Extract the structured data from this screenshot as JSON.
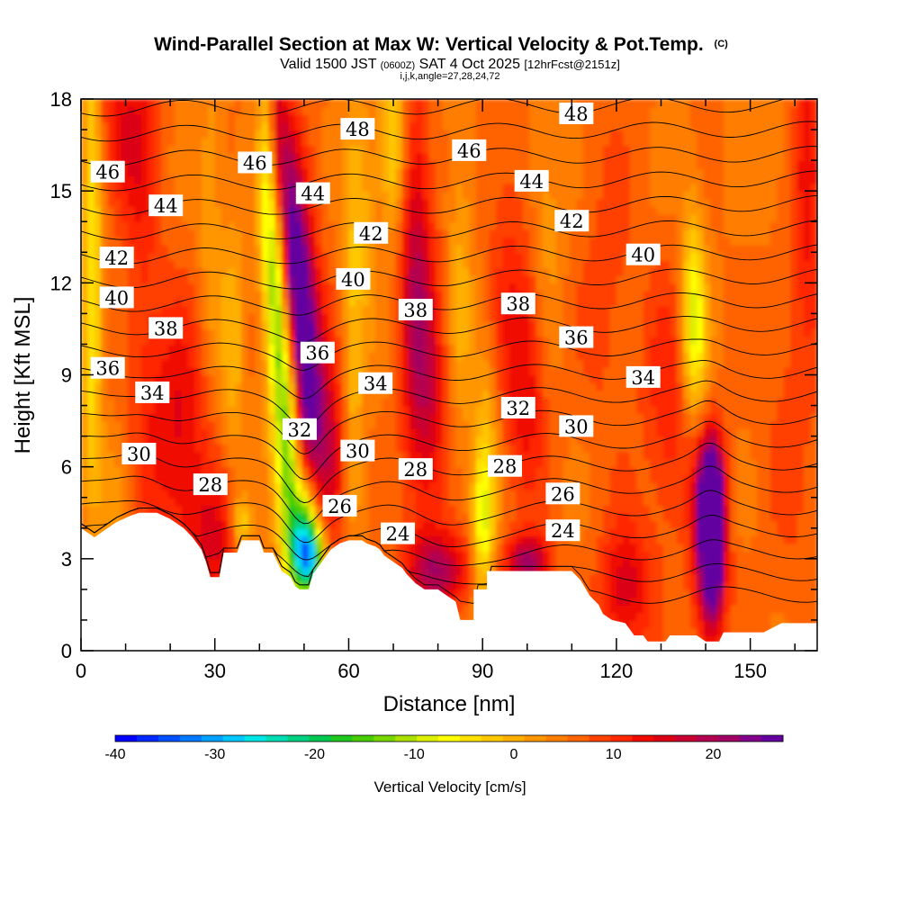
{
  "chart_data": {
    "type": "heatmap",
    "title": "Wind-Parallel Section at Max W: Vertical Velocity & Pot.Temp.",
    "title_mark": "(C)",
    "subtitle_parts": {
      "valid": "Valid 1500 JST",
      "utc": "(0600Z)",
      "date": "SAT 4 Oct 2025",
      "fcst": "[12hrFcst@2151z]"
    },
    "subtitle2": "i,j,k,angle=27,28,24,72",
    "xlabel": "Distance [nm]",
    "ylabel": "Height [Kft MSL]",
    "xlim": [
      0,
      165
    ],
    "ylim": [
      0,
      18
    ],
    "xticks": [
      0,
      30,
      60,
      90,
      120,
      150
    ],
    "yticks": [
      0,
      3,
      6,
      9,
      12,
      15,
      18
    ],
    "colorbar": {
      "label": "Vertical Velocity [cm/s]",
      "min": -40,
      "max": 27,
      "ticks": [
        -40,
        -30,
        -20,
        -10,
        0,
        10,
        20
      ],
      "colors": [
        "#0000ff",
        "#0028ff",
        "#0050ff",
        "#0078ff",
        "#00a0ff",
        "#00c8ff",
        "#00e6e6",
        "#00dcb4",
        "#00d282",
        "#00c850",
        "#1ec81e",
        "#46cd00",
        "#78d700",
        "#aae100",
        "#dcf000",
        "#ffff00",
        "#ffe100",
        "#ffc800",
        "#ffaf00",
        "#ff9600",
        "#ff7d00",
        "#ff6400",
        "#ff4100",
        "#ff2800",
        "#f00a00",
        "#dc0014",
        "#c80032",
        "#b40050",
        "#a00064",
        "#82008c",
        "#6400a0"
      ]
    },
    "terrain_kft": [
      [
        0,
        4.0
      ],
      [
        3,
        3.7
      ],
      [
        6,
        4.0
      ],
      [
        8,
        4.2
      ],
      [
        11,
        4.4
      ],
      [
        13,
        4.5
      ],
      [
        17,
        4.5
      ],
      [
        20,
        4.3
      ],
      [
        23,
        4.0
      ],
      [
        25,
        3.7
      ],
      [
        27,
        3.3
      ],
      [
        28,
        2.9
      ],
      [
        29,
        2.4
      ],
      [
        31,
        2.4
      ],
      [
        32,
        3.2
      ],
      [
        35,
        3.2
      ],
      [
        36,
        3.6
      ],
      [
        40,
        3.6
      ],
      [
        41,
        3.2
      ],
      [
        43,
        3.2
      ],
      [
        44,
        2.9
      ],
      [
        45,
        2.6
      ],
      [
        47,
        2.4
      ],
      [
        48,
        2.1
      ],
      [
        49,
        2.0
      ],
      [
        51,
        2.0
      ],
      [
        52,
        2.5
      ],
      [
        54,
        2.9
      ],
      [
        56,
        3.3
      ],
      [
        58,
        3.5
      ],
      [
        60,
        3.6
      ],
      [
        63,
        3.6
      ],
      [
        64,
        3.5
      ],
      [
        66,
        3.4
      ],
      [
        67,
        3.3
      ],
      [
        68,
        3.1
      ],
      [
        70,
        2.9
      ],
      [
        72,
        2.7
      ],
      [
        73,
        2.5
      ],
      [
        75,
        2.2
      ],
      [
        77,
        2.0
      ],
      [
        80,
        2.0
      ],
      [
        82,
        1.8
      ],
      [
        84,
        1.6
      ],
      [
        85,
        1.0
      ],
      [
        88,
        1.0
      ],
      [
        88,
        2.0
      ],
      [
        91,
        2.0
      ],
      [
        91,
        2.6
      ],
      [
        100,
        2.6
      ],
      [
        110,
        2.6
      ],
      [
        112,
        2.3
      ],
      [
        114,
        1.8
      ],
      [
        116,
        1.5
      ],
      [
        117,
        1.2
      ],
      [
        119,
        1.0
      ],
      [
        122,
        0.9
      ],
      [
        123,
        0.7
      ],
      [
        124,
        0.5
      ],
      [
        126,
        0.5
      ],
      [
        127,
        0.3
      ],
      [
        131,
        0.3
      ],
      [
        132,
        0.5
      ],
      [
        138,
        0.5
      ],
      [
        140,
        0.3
      ],
      [
        143,
        0.3
      ],
      [
        144,
        0.6
      ],
      [
        153,
        0.6
      ],
      [
        157,
        0.9
      ],
      [
        165,
        0.9
      ]
    ],
    "w_features": [
      {
        "x": 2.5,
        "z": 15,
        "w": -9,
        "sx": 1.4,
        "sz": 5.0
      },
      {
        "x": 2.5,
        "z": 9,
        "w": -6,
        "sx": 1.6,
        "sz": 3.0
      },
      {
        "x": 8,
        "z": 5,
        "w": -3,
        "sx": 3,
        "sz": 1.5
      },
      {
        "x": 14,
        "z": 12,
        "w": 4,
        "sx": 3,
        "sz": 5
      },
      {
        "x": 10,
        "z": 17,
        "w": 8,
        "sx": 4,
        "sz": 2
      },
      {
        "x": 22,
        "z": 7,
        "w": 9,
        "sx": 5,
        "sz": 3
      },
      {
        "x": 30,
        "z": 3.5,
        "w": 8,
        "sx": 4,
        "sz": 1.5
      },
      {
        "x": 29,
        "z": 14,
        "w": -4,
        "sx": 2,
        "sz": 4
      },
      {
        "x": 34,
        "z": 10,
        "w": -6,
        "sx": 2,
        "sz": 3
      },
      {
        "x": 36,
        "z": 4.2,
        "w": -10,
        "sx": 1.5,
        "sz": 0.6
      },
      {
        "x": 42,
        "z": 15,
        "w": -13,
        "sx": 1.6,
        "sz": 3
      },
      {
        "x": 44,
        "z": 11,
        "w": -15,
        "sx": 1.6,
        "sz": 3
      },
      {
        "x": 46.5,
        "z": 7,
        "w": -18,
        "sx": 1.8,
        "sz": 3
      },
      {
        "x": 50,
        "z": 4,
        "w": -22,
        "sx": 2.5,
        "sz": 1.3
      },
      {
        "x": 51,
        "z": 3,
        "w": -25,
        "sx": 2.4,
        "sz": 0.8
      },
      {
        "x": 44,
        "z": 16.5,
        "w": 15,
        "sx": 1.6,
        "sz": 2.0
      },
      {
        "x": 47,
        "z": 13.5,
        "w": 17,
        "sx": 1.8,
        "sz": 2.5
      },
      {
        "x": 49.5,
        "z": 11,
        "w": 19,
        "sx": 2.0,
        "sz": 2.5
      },
      {
        "x": 52,
        "z": 8.5,
        "w": 15,
        "sx": 2.5,
        "sz": 2.5
      },
      {
        "x": 56,
        "z": 6,
        "w": 10,
        "sx": 3,
        "sz": 2
      },
      {
        "x": 61,
        "z": 10,
        "w": -7,
        "sx": 1.6,
        "sz": 5
      },
      {
        "x": 64,
        "z": 14,
        "w": -4,
        "sx": 2,
        "sz": 3
      },
      {
        "x": 70,
        "z": 16.5,
        "w": -10,
        "sx": 2,
        "sz": 2
      },
      {
        "x": 75,
        "z": 12.5,
        "w": 12,
        "sx": 2.5,
        "sz": 4
      },
      {
        "x": 78,
        "z": 8,
        "w": 9,
        "sx": 3,
        "sz": 3
      },
      {
        "x": 80,
        "z": 2.6,
        "w": 14,
        "sx": 5,
        "sz": 0.9
      },
      {
        "x": 85,
        "z": 12,
        "w": -5,
        "sx": 2,
        "sz": 4
      },
      {
        "x": 90,
        "z": 4,
        "w": -12,
        "sx": 1.7,
        "sz": 1.8
      },
      {
        "x": 91,
        "z": 7,
        "w": -6,
        "sx": 2,
        "sz": 2.5
      },
      {
        "x": 95,
        "z": 12,
        "w": 4,
        "sx": 3,
        "sz": 4
      },
      {
        "x": 100,
        "z": 2.9,
        "w": 15,
        "sx": 3.5,
        "sz": 0.6
      },
      {
        "x": 100,
        "z": 9,
        "w": 8,
        "sx": 3,
        "sz": 3
      },
      {
        "x": 104,
        "z": 14,
        "w": -4,
        "sx": 3,
        "sz": 3
      },
      {
        "x": 118,
        "z": 12,
        "w": 3,
        "sx": 5,
        "sz": 4
      },
      {
        "x": 122,
        "z": 2,
        "w": 10,
        "sx": 4,
        "sz": 1.5
      },
      {
        "x": 132,
        "z": 8,
        "w": 6,
        "sx": 4,
        "sz": 3
      },
      {
        "x": 137,
        "z": 11.5,
        "w": -9,
        "sx": 1.8,
        "sz": 2.5
      },
      {
        "x": 138,
        "z": 10,
        "w": -7,
        "sx": 2.2,
        "sz": 2
      },
      {
        "x": 141.5,
        "z": 3.8,
        "w": 26,
        "sx": 1.3,
        "sz": 1.5
      },
      {
        "x": 141,
        "z": 5,
        "w": 20,
        "sx": 2.2,
        "sz": 1.5
      },
      {
        "x": 141,
        "z": 3,
        "w": 16,
        "sx": 2.5,
        "sz": 2.0
      },
      {
        "x": 160,
        "z": 9,
        "w": 3,
        "sx": 5,
        "sz": 5
      },
      {
        "x": 163,
        "z": 16,
        "w": 8,
        "sx": 2,
        "sz": 3
      },
      {
        "x": 155,
        "z": 16,
        "w": -3,
        "sx": 3,
        "sz": 2
      }
    ],
    "theta_lines": {
      "min": 23,
      "max": 49,
      "step": 0.5,
      "height_coeff_a": 1.43,
      "height_coeff_b": 0.0111,
      "ref_theta": 24
    },
    "theta_labels": [
      {
        "text": "46",
        "x": 6,
        "z": 15.6
      },
      {
        "text": "44",
        "x": 19,
        "z": 14.5
      },
      {
        "text": "42",
        "x": 8,
        "z": 12.8
      },
      {
        "text": "40",
        "x": 8,
        "z": 11.5
      },
      {
        "text": "38",
        "x": 19,
        "z": 10.5
      },
      {
        "text": "36",
        "x": 6,
        "z": 9.2
      },
      {
        "text": "34",
        "x": 16,
        "z": 8.4
      },
      {
        "text": "30",
        "x": 13,
        "z": 6.4
      },
      {
        "text": "28",
        "x": 29,
        "z": 5.4
      },
      {
        "text": "46",
        "x": 39,
        "z": 15.9
      },
      {
        "text": "44",
        "x": 52,
        "z": 14.9
      },
      {
        "text": "36",
        "x": 53,
        "z": 9.7
      },
      {
        "text": "32",
        "x": 49,
        "z": 7.2
      },
      {
        "text": "26",
        "x": 58,
        "z": 4.7
      },
      {
        "text": "48",
        "x": 62,
        "z": 17.0
      },
      {
        "text": "42",
        "x": 65,
        "z": 13.6
      },
      {
        "text": "40",
        "x": 61,
        "z": 12.1
      },
      {
        "text": "34",
        "x": 66,
        "z": 8.7
      },
      {
        "text": "30",
        "x": 62,
        "z": 6.5
      },
      {
        "text": "24",
        "x": 71,
        "z": 3.8
      },
      {
        "text": "38",
        "x": 75,
        "z": 11.1
      },
      {
        "text": "28",
        "x": 75,
        "z": 5.9
      },
      {
        "text": "46",
        "x": 87,
        "z": 16.3
      },
      {
        "text": "38",
        "x": 98,
        "z": 11.3
      },
      {
        "text": "32",
        "x": 98,
        "z": 7.9
      },
      {
        "text": "28",
        "x": 95,
        "z": 6.0
      },
      {
        "text": "44",
        "x": 101,
        "z": 15.3
      },
      {
        "text": "48",
        "x": 111,
        "z": 17.5
      },
      {
        "text": "42",
        "x": 110,
        "z": 14.0
      },
      {
        "text": "36",
        "x": 111,
        "z": 10.2
      },
      {
        "text": "30",
        "x": 111,
        "z": 7.3
      },
      {
        "text": "26",
        "x": 108,
        "z": 5.1
      },
      {
        "text": "24",
        "x": 108,
        "z": 3.9
      },
      {
        "text": "40",
        "x": 126,
        "z": 12.9
      },
      {
        "text": "34",
        "x": 126,
        "z": 8.9
      }
    ]
  }
}
